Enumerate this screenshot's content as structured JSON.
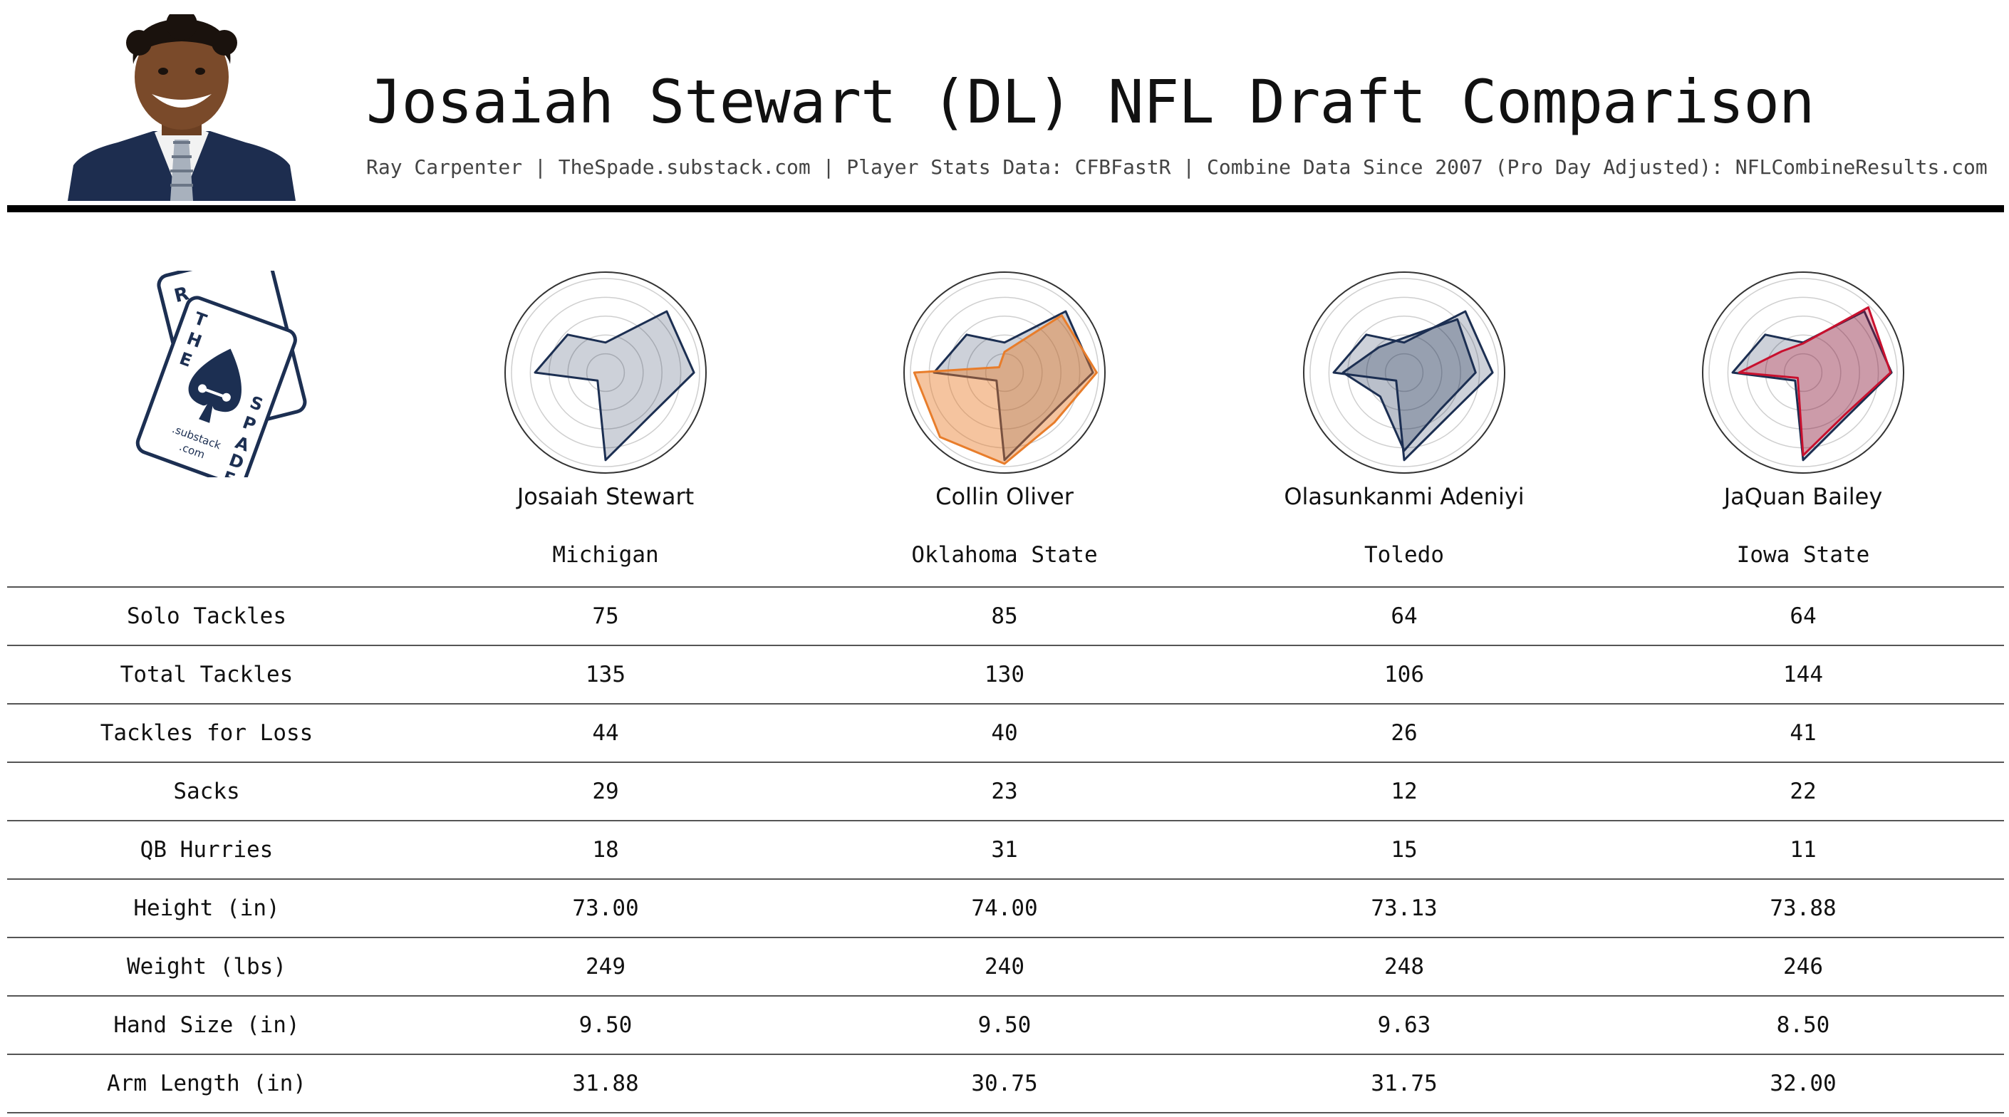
{
  "title": "Josaiah Stewart (DL) NFL Draft Comparison",
  "subtitle": "Ray Carpenter | TheSpade.substack.com | Player Stats Data: CFBFastR | Combine Data Since 2007 (Pro Day Adjusted): NFLCombineResults.com",
  "logo": {
    "name": "The Spade",
    "suffix": ".substack .com"
  },
  "colors": {
    "primary": "#1c2f52",
    "collin_oliver": "#e87d2b",
    "jaquan_bailey": "#c8102e",
    "rule": "#000000"
  },
  "players": [
    {
      "name": "Josaiah Stewart",
      "school": "Michigan"
    },
    {
      "name": "Collin Oliver",
      "school": "Oklahoma State"
    },
    {
      "name": "Olasunkanmi Adeniyi",
      "school": "Toledo"
    },
    {
      "name": "JaQuan Bailey",
      "school": "Iowa State"
    }
  ],
  "table": {
    "rows": [
      {
        "label": "Solo Tackles",
        "values": [
          "75",
          "85",
          "64",
          "64"
        ]
      },
      {
        "label": "Total Tackles",
        "values": [
          "135",
          "130",
          "106",
          "144"
        ]
      },
      {
        "label": "Tackles for Loss",
        "values": [
          "44",
          "40",
          "26",
          "41"
        ]
      },
      {
        "label": "Sacks",
        "values": [
          "29",
          "23",
          "12",
          "22"
        ]
      },
      {
        "label": "QB Hurries",
        "values": [
          "18",
          "31",
          "15",
          "11"
        ]
      },
      {
        "label": "Height (in)",
        "values": [
          "73.00",
          "74.00",
          "73.13",
          "73.88"
        ]
      },
      {
        "label": "Weight (lbs)",
        "values": [
          "249",
          "240",
          "248",
          "246"
        ]
      },
      {
        "label": "Hand Size (in)",
        "values": [
          "9.50",
          "9.50",
          "9.63",
          "8.50"
        ]
      },
      {
        "label": "Arm Length (in)",
        "values": [
          "31.88",
          "30.75",
          "31.75",
          "32.00"
        ]
      }
    ]
  },
  "chart_data": [
    {
      "type": "radar",
      "player": "Josaiah Stewart",
      "series": [
        {
          "values": [
            0.32,
            0.92,
            0.94,
            0.66,
            0.93,
            0.12,
            0.75,
            0.57
          ]
        }
      ]
    },
    {
      "type": "radar",
      "player": "Collin Oliver",
      "series": [
        {
          "values": [
            0.32,
            0.92,
            0.94,
            0.66,
            0.93,
            0.12,
            0.75,
            0.57
          ]
        },
        {
          "values": [
            0.22,
            0.86,
            0.98,
            0.75,
            0.97,
            0.97,
            0.96,
            0.08
          ]
        }
      ]
    },
    {
      "type": "radar",
      "player": "Olasunkanmi Adeniyi",
      "series": [
        {
          "values": [
            0.32,
            0.92,
            0.94,
            0.66,
            0.93,
            0.12,
            0.75,
            0.57
          ]
        },
        {
          "values": [
            0.37,
            0.8,
            0.76,
            0.55,
            0.83,
            0.36,
            0.65,
            0.38
          ]
        }
      ]
    },
    {
      "type": "radar",
      "player": "JaQuan Bailey",
      "series": [
        {
          "values": [
            0.32,
            0.92,
            0.94,
            0.66,
            0.93,
            0.12,
            0.75,
            0.57
          ]
        },
        {
          "values": [
            0.31,
            0.98,
            0.93,
            0.63,
            0.88,
            0.08,
            0.68,
            0.32
          ]
        }
      ]
    }
  ]
}
